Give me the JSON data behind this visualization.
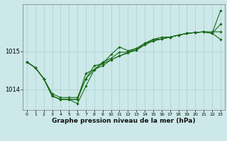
{
  "background_color": "#cce8e8",
  "grid_color": "#aad0d0",
  "line_color": "#1a6b1a",
  "marker_color": "#1a6b1a",
  "xlabel": "Graphe pression niveau de la mer (hPa)",
  "xlabel_fontsize": 6.5,
  "ylabel_ticks": [
    1014,
    1015
  ],
  "xlim": [
    -0.5,
    23.5
  ],
  "ylim": [
    1013.45,
    1016.25
  ],
  "xticks": [
    0,
    1,
    2,
    3,
    4,
    5,
    6,
    7,
    8,
    9,
    10,
    11,
    12,
    13,
    14,
    15,
    16,
    17,
    18,
    19,
    20,
    21,
    22,
    23
  ],
  "series": [
    [
      1014.72,
      1014.57,
      1014.28,
      1013.82,
      1013.73,
      1013.73,
      1013.62,
      1014.08,
      1014.52,
      1014.62,
      1014.78,
      1014.88,
      1014.96,
      1015.04,
      1015.18,
      1015.28,
      1015.33,
      1015.38,
      1015.43,
      1015.48,
      1015.5,
      1015.52,
      1015.48,
      1016.08
    ],
    [
      1014.72,
      1014.57,
      1014.28,
      1013.82,
      1013.73,
      1013.73,
      1013.73,
      1014.42,
      1014.52,
      1014.68,
      1014.92,
      1015.12,
      1015.02,
      1015.08,
      1015.22,
      1015.32,
      1015.38,
      1015.38,
      1015.43,
      1015.48,
      1015.5,
      1015.52,
      1015.48,
      1015.72
    ],
    [
      1014.72,
      1014.57,
      1014.28,
      1013.82,
      1013.73,
      1013.73,
      1013.73,
      1014.28,
      1014.52,
      1014.72,
      1014.82,
      1014.98,
      1014.98,
      1015.08,
      1015.18,
      1015.32,
      1015.33,
      1015.38,
      1015.43,
      1015.48,
      1015.5,
      1015.52,
      1015.48,
      1015.32
    ],
    [
      1014.72,
      1014.57,
      1014.28,
      1013.88,
      1013.78,
      1013.78,
      1013.78,
      1014.28,
      1014.62,
      1014.68,
      1014.78,
      1014.88,
      1014.98,
      1015.03,
      1015.18,
      1015.28,
      1015.33,
      1015.38,
      1015.43,
      1015.48,
      1015.5,
      1015.52,
      1015.52,
      1015.52
    ]
  ]
}
